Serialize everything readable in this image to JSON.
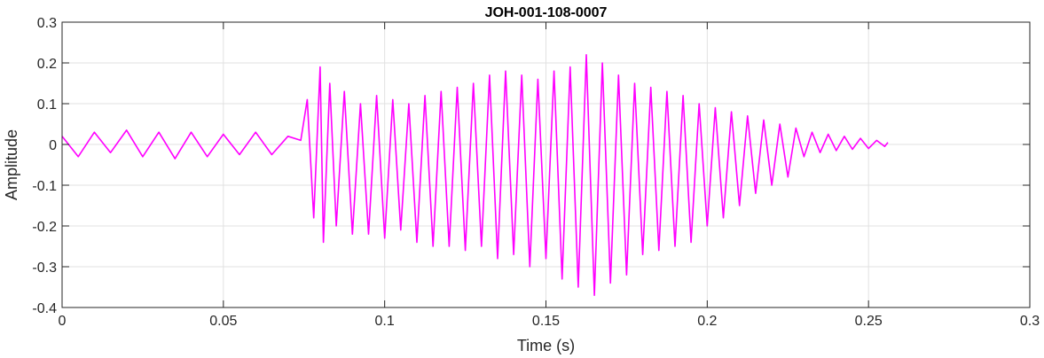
{
  "chart_data": {
    "type": "line",
    "title": "JOH-001-108-0007",
    "xlabel": "Time (s)",
    "ylabel": "Amplitude",
    "xlim": [
      0,
      0.3
    ],
    "ylim": [
      -0.4,
      0.3
    ],
    "xticks": [
      0,
      0.05,
      0.1,
      0.15,
      0.2,
      0.25,
      0.3
    ],
    "xtick_labels": [
      "0",
      "0.05",
      "0.1",
      "0.15",
      "0.2",
      "0.25",
      "0.3"
    ],
    "yticks": [
      -0.4,
      -0.3,
      -0.2,
      -0.1,
      0,
      0.1,
      0.2,
      0.3
    ],
    "ytick_labels": [
      "-0.4",
      "-0.3",
      "-0.2",
      "-0.1",
      "0",
      "0.1",
      "0.2",
      "0.3"
    ],
    "grid": true,
    "line_color": "#ff00ff",
    "series": [
      {
        "x": [
          0,
          0.005,
          0.01,
          0.015,
          0.02,
          0.025,
          0.03,
          0.035,
          0.04,
          0.045,
          0.05,
          0.055,
          0.06,
          0.065,
          0.07,
          0.074,
          0.076,
          0.078,
          0.08,
          0.081,
          0.083,
          0.085,
          0.0875,
          0.09,
          0.0925,
          0.095,
          0.0975,
          0.1,
          0.1025,
          0.105,
          0.1075,
          0.11,
          0.1125,
          0.115,
          0.1175,
          0.12,
          0.1225,
          0.125,
          0.1275,
          0.13,
          0.1325,
          0.135,
          0.1375,
          0.14,
          0.1425,
          0.145,
          0.1475,
          0.15,
          0.1525,
          0.155,
          0.1575,
          0.16,
          0.1625,
          0.165,
          0.1675,
          0.17,
          0.1725,
          0.175,
          0.1775,
          0.18,
          0.1825,
          0.185,
          0.1875,
          0.19,
          0.1925,
          0.195,
          0.1975,
          0.2,
          0.2025,
          0.205,
          0.2075,
          0.21,
          0.2125,
          0.215,
          0.2175,
          0.22,
          0.2225,
          0.225,
          0.2275,
          0.23,
          0.2325,
          0.235,
          0.2375,
          0.24,
          0.2425,
          0.245,
          0.2475,
          0.25,
          0.2525,
          0.255,
          0.256
        ],
        "y": [
          0.02,
          -0.03,
          0.03,
          -0.02,
          0.035,
          -0.03,
          0.03,
          -0.035,
          0.03,
          -0.03,
          0.025,
          -0.025,
          0.03,
          -0.025,
          0.02,
          0.01,
          0.11,
          -0.18,
          0.19,
          -0.24,
          0.15,
          -0.2,
          0.13,
          -0.22,
          0.1,
          -0.22,
          0.12,
          -0.23,
          0.11,
          -0.21,
          0.1,
          -0.24,
          0.12,
          -0.25,
          0.13,
          -0.25,
          0.14,
          -0.26,
          0.15,
          -0.25,
          0.17,
          -0.28,
          0.18,
          -0.27,
          0.17,
          -0.3,
          0.16,
          -0.28,
          0.18,
          -0.33,
          0.19,
          -0.35,
          0.22,
          -0.37,
          0.2,
          -0.34,
          0.17,
          -0.32,
          0.15,
          -0.27,
          0.14,
          -0.26,
          0.13,
          -0.25,
          0.12,
          -0.24,
          0.1,
          -0.2,
          0.09,
          -0.18,
          0.08,
          -0.15,
          0.07,
          -0.12,
          0.06,
          -0.1,
          0.05,
          -0.08,
          0.04,
          -0.03,
          0.03,
          -0.02,
          0.025,
          -0.015,
          0.02,
          -0.012,
          0.015,
          -0.01,
          0.01,
          -0.005,
          0.005
        ]
      }
    ]
  }
}
